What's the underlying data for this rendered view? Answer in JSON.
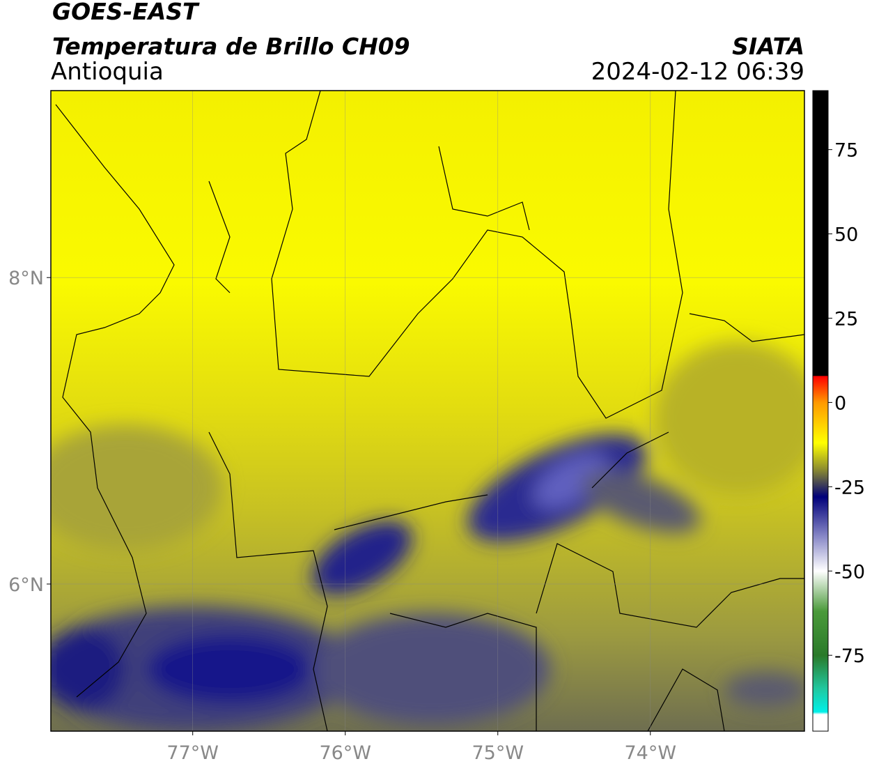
{
  "header": {
    "satellite": "GOES-EAST",
    "product": "Temperatura de Brillo CH09",
    "region": "Antioquia",
    "agency": "SIATA",
    "timestamp": "2024-02-12 06:39"
  },
  "map": {
    "lon_range": [
      -77.93,
      -72.99
    ],
    "lat_range": [
      5.04,
      9.22
    ],
    "lon_ticks": [
      {
        "value": -77,
        "label": "77°W"
      },
      {
        "value": -76,
        "label": "76°W"
      },
      {
        "value": -75,
        "label": "75°W"
      },
      {
        "value": -74,
        "label": "74°W"
      }
    ],
    "lat_ticks": [
      {
        "value": 8,
        "label": "8°N"
      },
      {
        "value": 6,
        "label": "6°N"
      }
    ],
    "grid": true
  },
  "colorbar": {
    "lim": [
      -97.5,
      92.5
    ],
    "ticks": [
      75,
      50,
      25,
      0,
      -25,
      -50,
      -75
    ]
  }
}
